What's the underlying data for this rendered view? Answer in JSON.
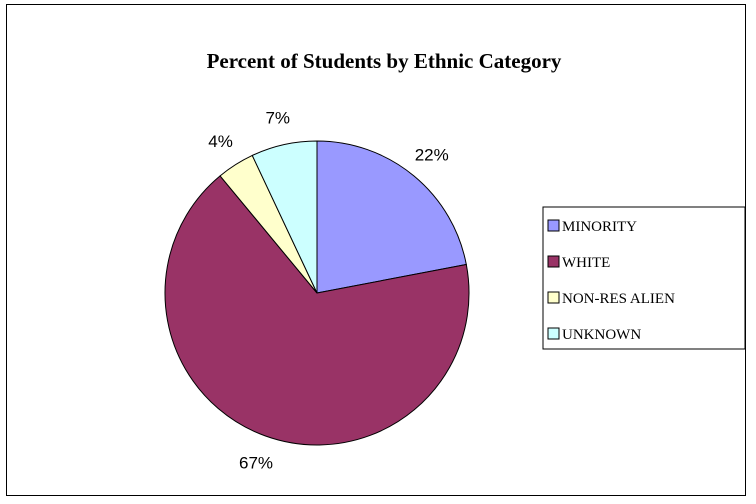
{
  "chart_data": {
    "type": "pie",
    "title": "Percent of Students by Ethnic Category",
    "start_angle_deg": 0,
    "direction": "clockwise",
    "legend_position": "right",
    "slices": [
      {
        "label": "MINORITY",
        "value": 22,
        "value_label": "22%",
        "color": "#9999FF"
      },
      {
        "label": "WHITE",
        "value": 67,
        "value_label": "67%",
        "color": "#993366"
      },
      {
        "label": "NON-RES ALIEN",
        "value": 4,
        "value_label": "4%",
        "color": "#FFFFCC"
      },
      {
        "label": "UNKNOWN",
        "value": 7,
        "value_label": "7%",
        "color": "#CCFFFF"
      }
    ]
  }
}
